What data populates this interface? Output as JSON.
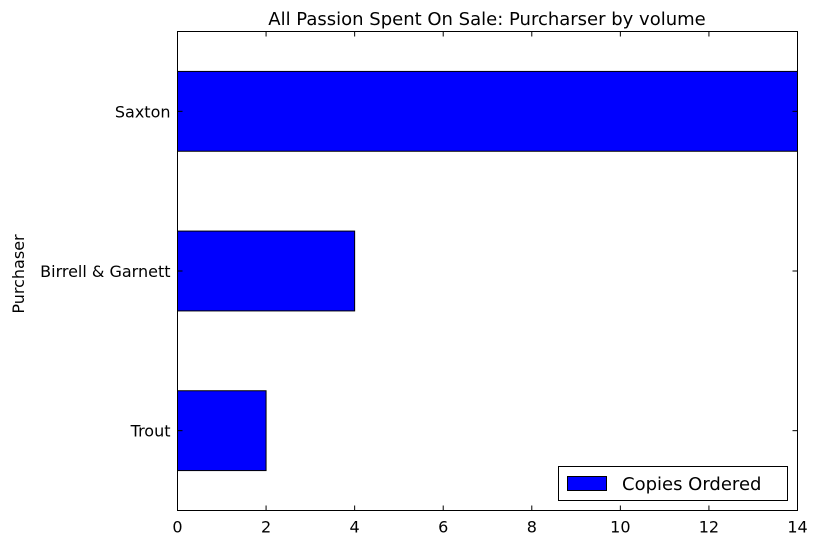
{
  "chart_data": {
    "type": "bar",
    "orientation": "horizontal",
    "title": "All Passion Spent On Sale: Purcharser by volume",
    "xlabel": "",
    "ylabel": "Purchaser",
    "categories": [
      "Trout",
      "Birrell & Garnett",
      "Saxton"
    ],
    "series": [
      {
        "name": "Copies Ordered",
        "values": [
          2,
          4,
          14
        ],
        "color": "#0000ff"
      }
    ],
    "xlim": [
      0,
      14
    ],
    "xticks": [
      0,
      2,
      4,
      6,
      8,
      10,
      12,
      14
    ],
    "grid": false,
    "legend_position": "lower right"
  }
}
